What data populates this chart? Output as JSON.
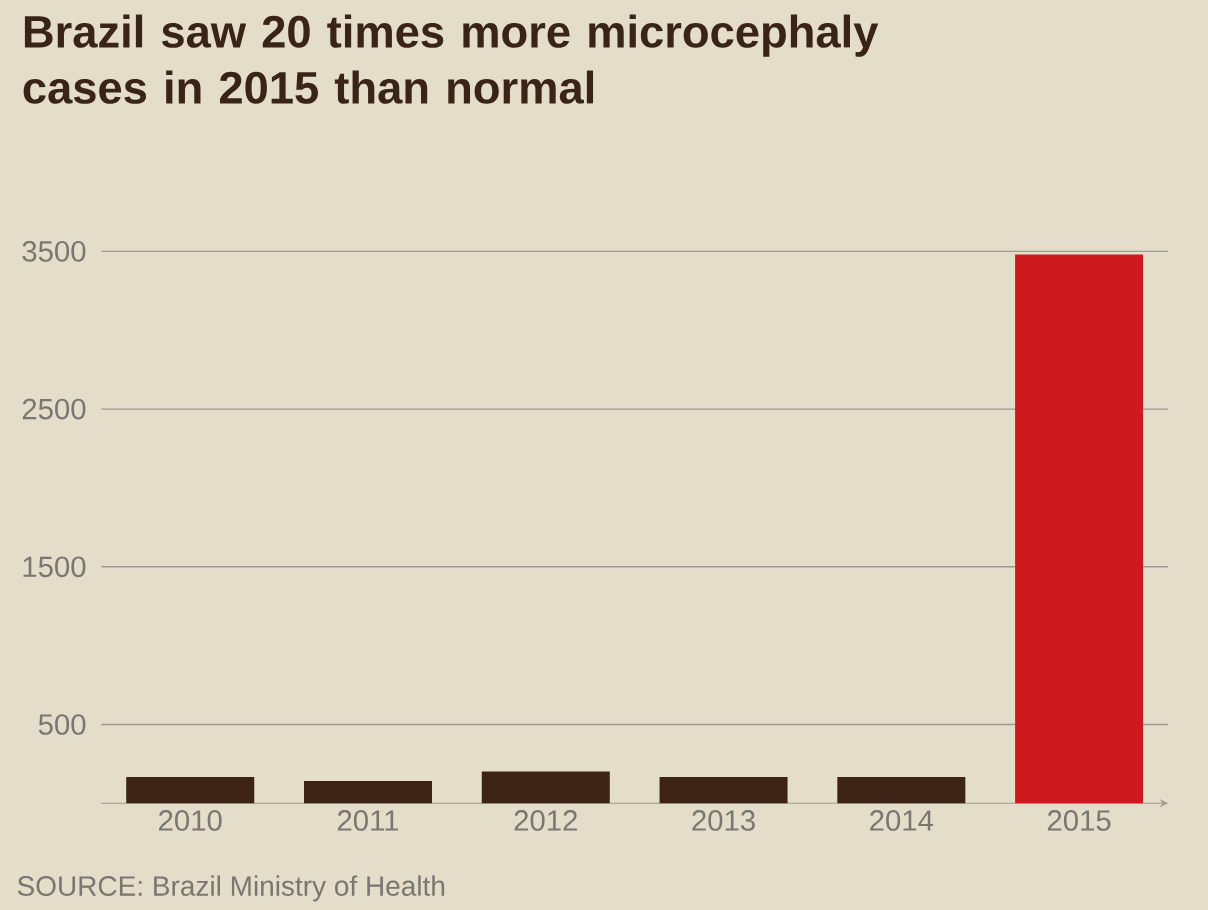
{
  "chart_data": {
    "type": "bar",
    "title": "Brazil saw 20 times more microcephaly cases in 2015 than normal",
    "categories": [
      "2010",
      "2011",
      "2012",
      "2013",
      "2014",
      "2015"
    ],
    "values": [
      167,
      141,
      202,
      167,
      167,
      3480
    ],
    "colors": [
      "#3d2216",
      "#3d2216",
      "#3d2216",
      "#3d2216",
      "#3d2216",
      "#cc1a1e"
    ],
    "ylim": [
      0,
      3500
    ],
    "yticks": [
      500,
      1500,
      2500,
      3500
    ],
    "grid": "y",
    "annotations": [
      "SOURCE: Brazil Ministry of Health"
    ]
  }
}
